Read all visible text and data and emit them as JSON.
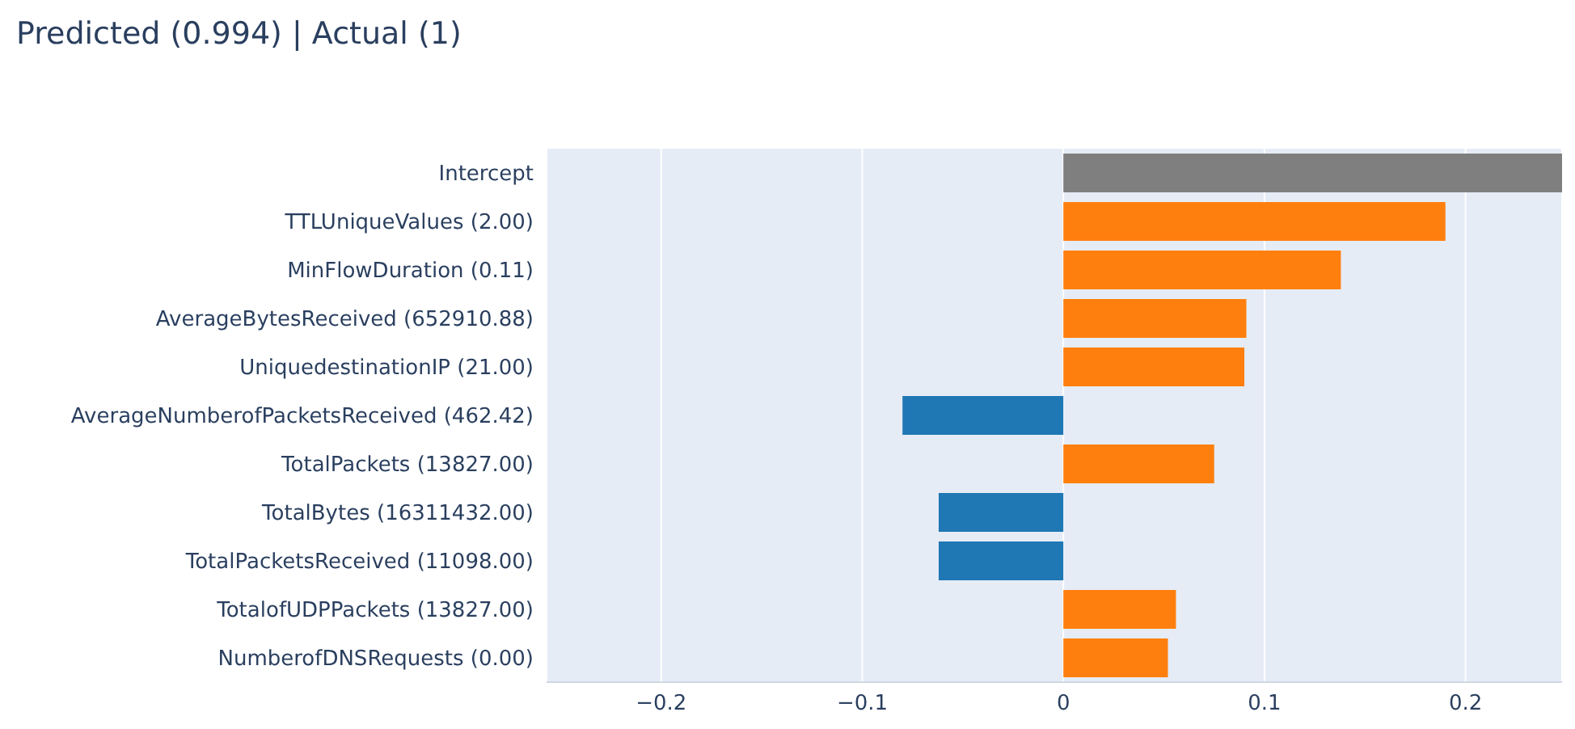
{
  "chart_data": {
    "type": "bar",
    "orientation": "horizontal",
    "title": "Predicted (0.994) | Actual (1)",
    "categories": [
      "Intercept",
      "TTLUniqueValues (2.00)",
      "MinFlowDuration (0.11)",
      "AverageBytesReceived (652910.88)",
      "UniquedestinationIP (21.00)",
      "AverageNumberofPacketsReceived (462.42)",
      "TotalPackets (13827.00)",
      "TotalBytes (16311432.00)",
      "TotalPacketsReceived (11098.00)",
      "TotalofUDPPackets (13827.00)",
      "NumberofDNSRequests (0.00)"
    ],
    "values": [
      0.248,
      0.19,
      0.138,
      0.091,
      0.09,
      -0.08,
      0.075,
      -0.062,
      -0.062,
      0.056,
      0.052
    ],
    "colors": [
      "#7f7f7f",
      "#ff7f0e",
      "#ff7f0e",
      "#ff7f0e",
      "#ff7f0e",
      "#1f77b4",
      "#ff7f0e",
      "#1f77b4",
      "#1f77b4",
      "#ff7f0e",
      "#ff7f0e"
    ],
    "xlim": [
      -0.257,
      0.248
    ],
    "xticks": [
      {
        "value": -0.2,
        "label": "−0.2"
      },
      {
        "value": -0.1,
        "label": "−0.1"
      },
      0,
      0.1,
      0.2
    ],
    "grid": "x"
  }
}
